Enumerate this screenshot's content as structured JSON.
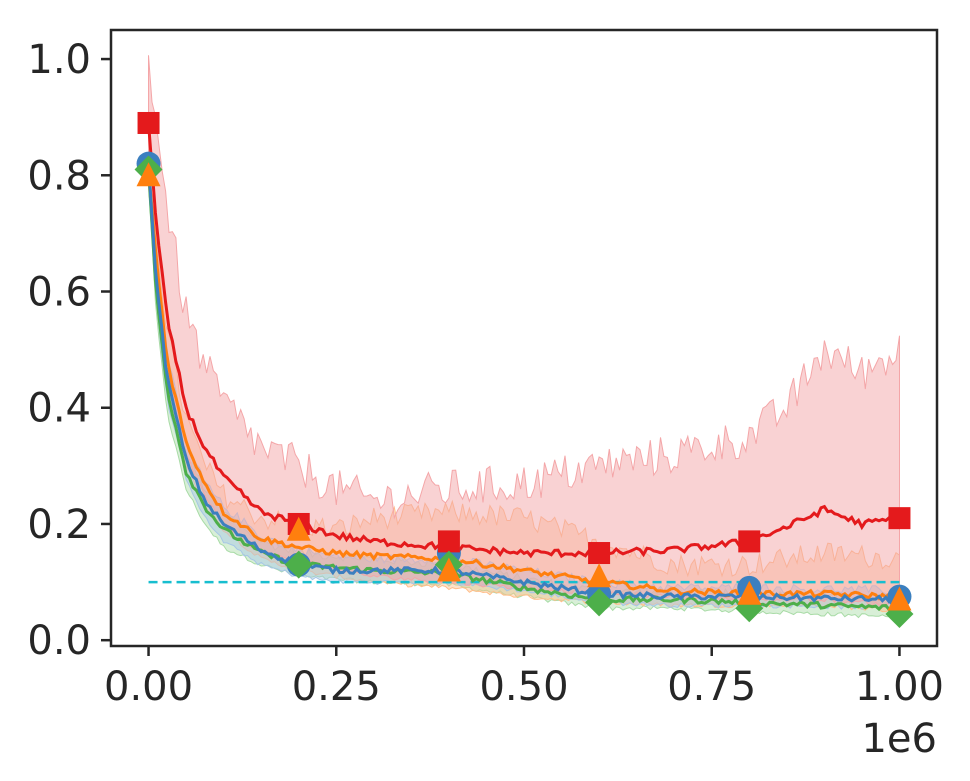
{
  "chart_data": {
    "type": "line",
    "title": "",
    "xlabel": "",
    "ylabel": "",
    "xlim": [
      -50000,
      1050000
    ],
    "ylim": [
      -0.01,
      1.05
    ],
    "x_offset_text": "1e6",
    "x_ticks": [
      0,
      250000,
      500000,
      750000,
      1000000
    ],
    "x_tick_labels": [
      "0.00",
      "0.25",
      "0.50",
      "0.75",
      "1.00"
    ],
    "y_ticks": [
      0.0,
      0.2,
      0.4,
      0.6,
      0.8,
      1.0
    ],
    "y_tick_labels": [
      "0.0",
      "0.2",
      "0.4",
      "0.6",
      "0.8",
      "1.0"
    ],
    "grid": false,
    "legend": "none",
    "reference_line": {
      "y": 0.1,
      "x_range": [
        0,
        1000000
      ],
      "color": "#17becf",
      "style": "dashed"
    },
    "series": [
      {
        "color": "#e41a1c",
        "marker": "square",
        "band_color": "#f4a6a8",
        "x": [
          0,
          10000,
          25000,
          50000,
          75000,
          100000,
          150000,
          200000,
          250000,
          300000,
          400000,
          500000,
          600000,
          700000,
          800000,
          850000,
          900000,
          950000,
          1000000
        ],
        "y": [
          0.89,
          0.72,
          0.55,
          0.4,
          0.33,
          0.28,
          0.22,
          0.2,
          0.18,
          0.17,
          0.16,
          0.15,
          0.15,
          0.155,
          0.17,
          0.195,
          0.225,
          0.2,
          0.21
        ],
        "upper": [
          1.0,
          0.9,
          0.74,
          0.56,
          0.47,
          0.41,
          0.33,
          0.3,
          0.26,
          0.24,
          0.26,
          0.27,
          0.3,
          0.32,
          0.35,
          0.4,
          0.5,
          0.46,
          0.5
        ],
        "lower": [
          0.82,
          0.64,
          0.47,
          0.32,
          0.25,
          0.2,
          0.15,
          0.14,
          0.12,
          0.11,
          0.1,
          0.09,
          0.08,
          0.075,
          0.07,
          0.07,
          0.07,
          0.065,
          0.06
        ],
        "marker_x": [
          0,
          200000,
          400000,
          600000,
          800000,
          1000000
        ],
        "marker_y": [
          0.89,
          0.2,
          0.17,
          0.15,
          0.17,
          0.21
        ]
      },
      {
        "color": "#3b7fbf",
        "marker": "circle",
        "band_color": "#a6c6e6",
        "x": [
          0,
          10000,
          25000,
          50000,
          75000,
          100000,
          150000,
          200000,
          250000,
          300000,
          400000,
          500000,
          600000,
          700000,
          800000,
          900000,
          1000000
        ],
        "y": [
          0.82,
          0.62,
          0.45,
          0.31,
          0.24,
          0.2,
          0.155,
          0.13,
          0.12,
          0.12,
          0.12,
          0.1,
          0.08,
          0.075,
          0.075,
          0.072,
          0.07
        ],
        "upper": [
          0.84,
          0.66,
          0.49,
          0.34,
          0.27,
          0.23,
          0.18,
          0.155,
          0.145,
          0.14,
          0.14,
          0.12,
          0.1,
          0.09,
          0.09,
          0.088,
          0.085
        ],
        "lower": [
          0.79,
          0.58,
          0.41,
          0.28,
          0.21,
          0.17,
          0.13,
          0.11,
          0.1,
          0.1,
          0.1,
          0.085,
          0.065,
          0.06,
          0.06,
          0.058,
          0.055
        ],
        "marker_x": [
          0,
          200000,
          400000,
          600000,
          800000,
          1000000
        ],
        "marker_y": [
          0.82,
          0.13,
          0.15,
          0.08,
          0.09,
          0.075
        ]
      },
      {
        "color": "#ff7f0e",
        "marker": "triangle",
        "band_color": "#ffbe8a",
        "x": [
          0,
          10000,
          25000,
          50000,
          75000,
          100000,
          150000,
          200000,
          250000,
          300000,
          400000,
          500000,
          550000,
          600000,
          700000,
          800000,
          900000,
          1000000
        ],
        "y": [
          0.81,
          0.66,
          0.48,
          0.34,
          0.27,
          0.22,
          0.175,
          0.16,
          0.15,
          0.145,
          0.14,
          0.12,
          0.11,
          0.1,
          0.085,
          0.08,
          0.08,
          0.075
        ],
        "upper": [
          0.83,
          0.7,
          0.53,
          0.38,
          0.3,
          0.25,
          0.21,
          0.2,
          0.19,
          0.21,
          0.22,
          0.21,
          0.19,
          0.17,
          0.13,
          0.13,
          0.15,
          0.14
        ],
        "lower": [
          0.78,
          0.62,
          0.44,
          0.3,
          0.23,
          0.19,
          0.14,
          0.12,
          0.11,
          0.1,
          0.09,
          0.075,
          0.07,
          0.065,
          0.06,
          0.06,
          0.06,
          0.05
        ],
        "marker_x": [
          0,
          200000,
          400000,
          600000,
          800000,
          1000000
        ],
        "marker_y": [
          0.8,
          0.19,
          0.12,
          0.11,
          0.08,
          0.07
        ]
      },
      {
        "color": "#4daf4a",
        "marker": "diamond",
        "band_color": "#a8dba6",
        "x": [
          0,
          10000,
          25000,
          50000,
          75000,
          100000,
          150000,
          200000,
          250000,
          300000,
          400000,
          500000,
          600000,
          700000,
          800000,
          900000,
          1000000
        ],
        "y": [
          0.81,
          0.6,
          0.43,
          0.29,
          0.23,
          0.19,
          0.15,
          0.13,
          0.125,
          0.12,
          0.115,
          0.09,
          0.07,
          0.07,
          0.065,
          0.06,
          0.055
        ],
        "upper": [
          0.83,
          0.64,
          0.47,
          0.32,
          0.26,
          0.22,
          0.17,
          0.15,
          0.145,
          0.14,
          0.13,
          0.105,
          0.085,
          0.08,
          0.08,
          0.075,
          0.07
        ],
        "lower": [
          0.79,
          0.56,
          0.39,
          0.26,
          0.2,
          0.16,
          0.13,
          0.11,
          0.105,
          0.1,
          0.095,
          0.075,
          0.055,
          0.055,
          0.05,
          0.045,
          0.04
        ],
        "marker_x": [
          0,
          200000,
          400000,
          600000,
          800000,
          1000000
        ],
        "marker_y": [
          0.81,
          0.13,
          0.13,
          0.065,
          0.055,
          0.045
        ]
      }
    ]
  }
}
